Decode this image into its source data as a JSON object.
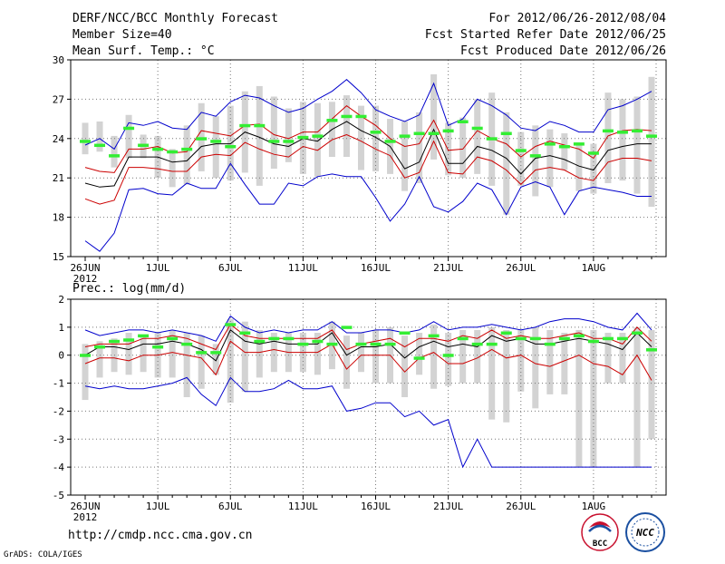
{
  "header": {
    "title": "DERF/NCC/BCC Monthly Forecast",
    "member_size": "Member Size=40",
    "variable": "Mean Surf. Temp.: °C",
    "period": "For 2012/06/26-2012/08/04",
    "fcst_started": "Fcst Started Refer Date 2012/06/25",
    "fcst_produced": "Fcst Produced Date 2012/06/26"
  },
  "footer": {
    "url": "http://cmdp.ncc.cma.gov.cn",
    "grads": "GrADS: COLA/IGES",
    "logo_bcc": "BCC",
    "logo_ncc": "NCC"
  },
  "colors": {
    "max_min": "#0000cc",
    "mean": "#000000",
    "sd_band": "#cc0000",
    "obs": "#33ee33",
    "boxes": "#d3d3d3"
  },
  "chart_data": [
    {
      "type": "line",
      "title": "Mean Surf. Temp.: °C",
      "ylim": [
        15,
        30
      ],
      "yticks": [
        "15",
        "18",
        "21",
        "24",
        "27",
        "30"
      ],
      "xticks": [
        "26JUN",
        "1JUL",
        "6JUL",
        "11JUL",
        "16JUL",
        "21JUL",
        "26JUL",
        "1AUG"
      ],
      "xticks_year": "2012",
      "days": 40,
      "series": [
        {
          "name": "max",
          "values": [
            23.5,
            24.0,
            23.2,
            25.2,
            25.0,
            25.3,
            24.8,
            24.7,
            26.0,
            25.7,
            26.8,
            27.3,
            27.1,
            26.5,
            26.0,
            26.3,
            27.0,
            27.6,
            28.5,
            27.5,
            26.2,
            25.7,
            25.3,
            25.8,
            28.2,
            25.0,
            25.5,
            27.0,
            26.5,
            25.8,
            24.8,
            24.6,
            25.3,
            25.0,
            24.5,
            24.5,
            26.2,
            26.5,
            27.0,
            27.6
          ]
        },
        {
          "name": "sd_upper",
          "values": [
            21.8,
            21.5,
            21.4,
            23.2,
            23.2,
            23.4,
            22.9,
            23.0,
            24.6,
            24.4,
            24.2,
            25.0,
            25.1,
            24.3,
            24.0,
            24.5,
            24.5,
            25.5,
            26.5,
            25.7,
            25.0,
            24.0,
            23.4,
            23.6,
            25.4,
            23.1,
            23.2,
            24.6,
            24.0,
            23.6,
            22.6,
            23.4,
            23.8,
            23.5,
            23.2,
            22.5,
            24.2,
            24.6,
            24.7,
            24.6
          ]
        },
        {
          "name": "mean",
          "values": [
            20.6,
            20.3,
            20.4,
            22.6,
            22.6,
            22.6,
            22.2,
            22.3,
            23.4,
            23.6,
            23.6,
            24.5,
            24.1,
            23.6,
            23.4,
            24.0,
            23.8,
            24.7,
            25.3,
            24.6,
            24.1,
            23.4,
            21.7,
            22.2,
            24.7,
            22.1,
            22.1,
            23.4,
            23.1,
            22.5,
            21.3,
            22.5,
            22.7,
            22.4,
            21.9,
            21.6,
            23.1,
            23.4,
            23.6,
            23.6
          ]
        },
        {
          "name": "sd_lower",
          "values": [
            19.4,
            19.0,
            19.3,
            21.8,
            21.8,
            21.7,
            21.5,
            21.5,
            22.6,
            22.8,
            22.7,
            23.7,
            23.2,
            22.8,
            22.6,
            23.4,
            23.1,
            23.9,
            24.3,
            23.8,
            23.2,
            22.7,
            21.0,
            21.4,
            23.8,
            21.4,
            21.3,
            22.6,
            22.3,
            21.6,
            20.5,
            21.6,
            21.8,
            21.6,
            21.0,
            20.8,
            22.2,
            22.5,
            22.5,
            22.3
          ]
        },
        {
          "name": "min",
          "values": [
            16.2,
            15.4,
            16.8,
            20.1,
            20.2,
            19.8,
            19.7,
            20.6,
            20.2,
            20.2,
            22.1,
            20.5,
            19.0,
            19.0,
            20.6,
            20.4,
            21.1,
            21.3,
            21.1,
            21.1,
            19.5,
            17.7,
            19.0,
            21.1,
            18.8,
            18.4,
            19.2,
            20.6,
            20.1,
            18.2,
            20.3,
            20.7,
            20.3,
            18.2,
            20.0,
            20.3,
            20.1,
            19.9,
            19.6,
            19.6
          ]
        },
        {
          "name": "observed",
          "values": [
            23.8,
            23.5,
            22.7,
            24.8,
            23.5,
            23.2,
            23.0,
            23.2,
            24.0,
            23.8,
            23.4,
            25.0,
            25.0,
            23.8,
            23.8,
            24.1,
            24.2,
            25.4,
            25.7,
            25.7,
            24.5,
            23.8,
            24.2,
            24.4,
            24.4,
            24.6,
            25.3,
            24.8,
            24.0,
            24.4,
            23.1,
            22.7,
            23.6,
            23.4,
            23.6,
            22.9,
            24.6,
            24.5,
            24.6,
            24.2
          ]
        }
      ],
      "boxes": [
        [
          22.8,
          25.2
        ],
        [
          23.0,
          25.3
        ],
        [
          21.8,
          24.2
        ],
        [
          22.5,
          25.8
        ],
        [
          22.5,
          24.3
        ],
        [
          21.0,
          24.2
        ],
        [
          20.3,
          23.2
        ],
        [
          20.5,
          25.0
        ],
        [
          21.5,
          26.7
        ],
        [
          21.0,
          25.7
        ],
        [
          20.8,
          26.5
        ],
        [
          21.4,
          27.6
        ],
        [
          20.4,
          28.0
        ],
        [
          21.7,
          27.2
        ],
        [
          22.2,
          26.3
        ],
        [
          21.3,
          26.8
        ],
        [
          21.1,
          26.7
        ],
        [
          22.6,
          26.8
        ],
        [
          22.6,
          27.3
        ],
        [
          21.6,
          26.5
        ],
        [
          21.5,
          26.5
        ],
        [
          21.3,
          25.5
        ],
        [
          20.0,
          25.3
        ],
        [
          20.6,
          26.0
        ],
        [
          22.4,
          28.9
        ],
        [
          21.2,
          25.2
        ],
        [
          21.0,
          25.6
        ],
        [
          21.3,
          27.0
        ],
        [
          20.4,
          27.5
        ],
        [
          18.2,
          26.0
        ],
        [
          20.4,
          24.5
        ],
        [
          19.6,
          25.0
        ],
        [
          20.3,
          24.7
        ],
        [
          21.6,
          24.4
        ],
        [
          20.0,
          23.7
        ],
        [
          19.8,
          23.6
        ],
        [
          20.6,
          27.5
        ],
        [
          20.8,
          27.0
        ],
        [
          19.8,
          27.2
        ],
        [
          18.8,
          28.7
        ]
      ]
    },
    {
      "type": "line",
      "title": "Prec.: log(mm/d)",
      "ylim": [
        -5,
        2
      ],
      "yticks": [
        "-5",
        "-4",
        "-3",
        "-2",
        "-1",
        "0",
        "1",
        "2"
      ],
      "xticks": [
        "26JUN",
        "1JUL",
        "6JUL",
        "11JUL",
        "16JUL",
        "21JUL",
        "26JUL",
        "1AUG"
      ],
      "xticks_year": "2012",
      "days": 40,
      "series": [
        {
          "name": "max",
          "values": [
            0.9,
            0.7,
            0.8,
            0.9,
            0.9,
            0.8,
            0.9,
            0.8,
            0.7,
            0.5,
            1.4,
            1.0,
            0.8,
            0.9,
            0.8,
            0.9,
            0.9,
            1.2,
            0.8,
            0.8,
            0.9,
            0.9,
            0.8,
            0.9,
            1.2,
            0.9,
            1.0,
            1.0,
            1.1,
            1.0,
            0.9,
            1.0,
            1.2,
            1.3,
            1.3,
            1.2,
            1.0,
            0.9,
            1.5,
            0.9
          ]
        },
        {
          "name": "sd_upper",
          "values": [
            0.3,
            0.4,
            0.4,
            0.4,
            0.6,
            0.6,
            0.7,
            0.6,
            0.4,
            0.2,
            1.1,
            0.7,
            0.6,
            0.6,
            0.6,
            0.6,
            0.6,
            0.9,
            0.2,
            0.4,
            0.5,
            0.6,
            0.3,
            0.6,
            0.6,
            0.5,
            0.7,
            0.6,
            0.9,
            0.6,
            0.7,
            0.6,
            0.6,
            0.7,
            0.8,
            0.6,
            0.6,
            0.4,
            1.0,
            0.5
          ]
        },
        {
          "name": "mean",
          "values": [
            0.0,
            0.3,
            0.3,
            0.2,
            0.4,
            0.4,
            0.5,
            0.4,
            0.2,
            -0.2,
            0.9,
            0.5,
            0.4,
            0.5,
            0.4,
            0.4,
            0.4,
            0.8,
            0.0,
            0.3,
            0.3,
            0.4,
            -0.1,
            0.3,
            0.5,
            0.3,
            0.4,
            0.3,
            0.7,
            0.5,
            0.6,
            0.4,
            0.4,
            0.5,
            0.6,
            0.5,
            0.4,
            0.2,
            0.8,
            0.3
          ]
        },
        {
          "name": "sd_lower",
          "values": [
            -0.3,
            -0.1,
            -0.1,
            -0.2,
            0.0,
            0.0,
            0.1,
            0.0,
            -0.1,
            -0.7,
            0.5,
            0.1,
            0.1,
            0.2,
            0.1,
            0.1,
            0.1,
            0.4,
            -0.5,
            0.0,
            0.0,
            0.0,
            -0.6,
            -0.1,
            0.1,
            -0.3,
            -0.3,
            -0.1,
            0.2,
            -0.1,
            0.0,
            -0.3,
            -0.4,
            -0.2,
            0.0,
            -0.3,
            -0.4,
            -0.7,
            0.0,
            -0.9
          ]
        },
        {
          "name": "min",
          "values": [
            -1.1,
            -1.2,
            -1.1,
            -1.2,
            -1.2,
            -1.1,
            -1.0,
            -0.8,
            -1.4,
            -1.8,
            -0.8,
            -1.3,
            -1.3,
            -1.2,
            -0.9,
            -1.2,
            -1.2,
            -1.1,
            -2.0,
            -1.9,
            -1.7,
            -1.7,
            -2.2,
            -2.0,
            -2.5,
            -2.3,
            -4.0,
            -3.0,
            -4.0,
            -4.0,
            -4.0,
            -4.0,
            -4.0,
            -4.0,
            -4.0,
            -4.0,
            -4.0,
            -4.0,
            -4.0,
            -4.0
          ]
        },
        {
          "name": "observed",
          "values": [
            0.0,
            0.3,
            0.5,
            0.55,
            0.7,
            0.3,
            0.6,
            0.4,
            0.1,
            0.1,
            1.1,
            0.8,
            0.5,
            0.6,
            0.6,
            0.4,
            0.5,
            0.4,
            1.0,
            0.4,
            0.4,
            0.4,
            0.8,
            -0.1,
            0.7,
            0.0,
            0.6,
            0.4,
            0.4,
            0.8,
            0.6,
            0.6,
            0.4,
            0.6,
            0.7,
            0.5,
            0.6,
            0.6,
            0.8,
            0.2
          ]
        }
      ],
      "boxes": [
        [
          -1.6,
          0.4
        ],
        [
          -0.8,
          0.5
        ],
        [
          -0.6,
          0.6
        ],
        [
          -0.7,
          0.8
        ],
        [
          -0.6,
          0.7
        ],
        [
          -0.8,
          0.8
        ],
        [
          -0.8,
          0.9
        ],
        [
          -1.5,
          0.8
        ],
        [
          -1.2,
          0.7
        ],
        [
          -0.7,
          0.4
        ],
        [
          -1.7,
          1.3
        ],
        [
          -1.3,
          1.2
        ],
        [
          -0.8,
          0.9
        ],
        [
          -0.6,
          0.8
        ],
        [
          -0.6,
          0.8
        ],
        [
          -0.6,
          0.8
        ],
        [
          -0.7,
          0.8
        ],
        [
          -0.5,
          1.2
        ],
        [
          -1.2,
          0.7
        ],
        [
          -0.6,
          0.8
        ],
        [
          -1.0,
          0.9
        ],
        [
          -1.0,
          1.0
        ],
        [
          -1.5,
          0.7
        ],
        [
          -0.7,
          0.8
        ],
        [
          -1.2,
          1.1
        ],
        [
          -1.1,
          0.8
        ],
        [
          -1.0,
          0.9
        ],
        [
          -1.0,
          0.9
        ],
        [
          -2.3,
          1.0
        ],
        [
          -2.4,
          0.9
        ],
        [
          -1.3,
          0.9
        ],
        [
          -1.9,
          1.0
        ],
        [
          -1.4,
          0.9
        ],
        [
          -1.4,
          0.8
        ],
        [
          -4.0,
          0.9
        ],
        [
          -4.0,
          0.9
        ],
        [
          -1.0,
          0.8
        ],
        [
          -1.0,
          0.8
        ],
        [
          -4.0,
          1.0
        ],
        [
          -3.0,
          0.9
        ]
      ]
    }
  ]
}
